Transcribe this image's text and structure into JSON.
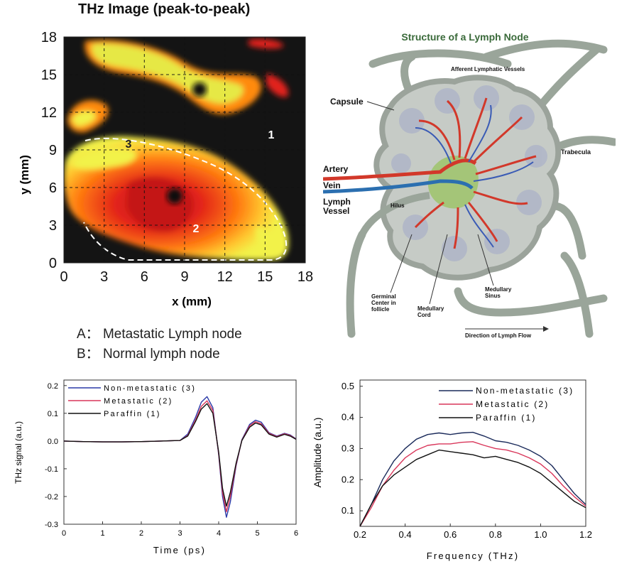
{
  "heatmap": {
    "title": "THz Image (peak-to-peak)",
    "xlabel": "x (mm)",
    "ylabel": "y (mm)",
    "xticks": [
      "0",
      "3",
      "6",
      "9",
      "12",
      "15",
      "18"
    ],
    "yticks": [
      "0",
      "3",
      "6",
      "9",
      "12",
      "15",
      "18"
    ],
    "region_labels": [
      "1",
      "2",
      "3"
    ],
    "colors": {
      "hot": "#f2f24a",
      "mid": "#ff9a10",
      "warm": "#e2231a",
      "cold": "#141414"
    }
  },
  "notes": {
    "a": "A： Metastatic Lymph node",
    "b": "B： Normal lymph node"
  },
  "diagram": {
    "title": "Structure of a Lymph Node",
    "labels": {
      "capsule": "Capsule",
      "afferent": "Afferent Lymphatic Vessels",
      "trabecula": "Trabecula",
      "artery": "Artery",
      "vein": "Vein",
      "lymph_vessel": "Lymph Vessel",
      "hilus": "Hilus",
      "germinal": "Germinal Center in follicle",
      "medullary_cord": "Medullary Cord",
      "medullary_sinus": "Medullary Sinus",
      "direction": "Direction of Lymph Flow"
    }
  },
  "chart_data": [
    {
      "type": "line",
      "xlabel": "Time (ps)",
      "ylabel": "THz signal (a.u.)",
      "xlim": [
        0,
        6
      ],
      "ylim": [
        -0.3,
        0.22
      ],
      "xticks": [
        "0",
        "1",
        "2",
        "3",
        "4",
        "5",
        "6"
      ],
      "yticks": [
        "0.2",
        "0.1",
        "0.0",
        "-0.1",
        "-0.2",
        "-0.3"
      ],
      "legend_position": "top-left",
      "series": [
        {
          "name": "Non-metastatic (3)",
          "color": "#2b3aa8",
          "x": [
            0,
            0.5,
            1.0,
            1.5,
            2.0,
            2.5,
            3.0,
            3.2,
            3.4,
            3.55,
            3.7,
            3.85,
            4.0,
            4.1,
            4.2,
            4.3,
            4.45,
            4.6,
            4.8,
            4.95,
            5.1,
            5.3,
            5.5,
            5.7,
            5.85,
            6.0
          ],
          "y": [
            0,
            -0.002,
            -0.003,
            -0.003,
            -0.002,
            0,
            0.002,
            0.025,
            0.085,
            0.14,
            0.16,
            0.12,
            -0.05,
            -0.2,
            -0.275,
            -0.22,
            -0.09,
            0.005,
            0.06,
            0.075,
            0.068,
            0.03,
            0.018,
            0.028,
            0.022,
            0.008
          ]
        },
        {
          "name": "Metastatic (2)",
          "color": "#d9365a",
          "x": [
            0,
            0.5,
            1.0,
            1.5,
            2.0,
            2.5,
            3.0,
            3.2,
            3.4,
            3.55,
            3.7,
            3.85,
            4.0,
            4.1,
            4.2,
            4.3,
            4.45,
            4.6,
            4.8,
            4.95,
            5.1,
            5.3,
            5.5,
            5.7,
            5.85,
            6.0
          ],
          "y": [
            0,
            -0.002,
            -0.003,
            -0.003,
            -0.002,
            0,
            0.002,
            0.02,
            0.075,
            0.125,
            0.145,
            0.11,
            -0.045,
            -0.185,
            -0.255,
            -0.2,
            -0.085,
            0.003,
            0.055,
            0.07,
            0.062,
            0.028,
            0.016,
            0.026,
            0.02,
            0.007
          ]
        },
        {
          "name": "Paraffin (1)",
          "color": "#111111",
          "x": [
            0,
            0.5,
            1.0,
            1.5,
            2.0,
            2.5,
            3.0,
            3.2,
            3.4,
            3.55,
            3.7,
            3.85,
            4.0,
            4.1,
            4.2,
            4.3,
            4.45,
            4.6,
            4.8,
            4.95,
            5.1,
            5.3,
            5.5,
            5.7,
            5.85,
            6.0
          ],
          "y": [
            0,
            -0.002,
            -0.003,
            -0.003,
            -0.002,
            0,
            0.002,
            0.018,
            0.07,
            0.115,
            0.135,
            0.1,
            -0.04,
            -0.17,
            -0.235,
            -0.185,
            -0.08,
            0.002,
            0.05,
            0.065,
            0.058,
            0.025,
            0.014,
            0.024,
            0.018,
            0.006
          ]
        }
      ]
    },
    {
      "type": "line",
      "xlabel": "Frequency (THz)",
      "ylabel": "Amplitude (a.u.)",
      "xlim": [
        0.2,
        1.2
      ],
      "ylim": [
        0.05,
        0.52
      ],
      "xticks": [
        "0.2",
        "0.4",
        "0.6",
        "0.8",
        "1.0",
        "1.2"
      ],
      "yticks": [
        "0.5",
        "0.4",
        "0.3",
        "0.2",
        "0.1"
      ],
      "legend_position": "top-right",
      "series": [
        {
          "name": "Non-metastatic (3)",
          "color": "#1a2a5a",
          "x": [
            0.2,
            0.25,
            0.3,
            0.35,
            0.4,
            0.45,
            0.5,
            0.55,
            0.6,
            0.65,
            0.7,
            0.75,
            0.8,
            0.85,
            0.9,
            0.95,
            1.0,
            1.05,
            1.1,
            1.15,
            1.2
          ],
          "y": [
            0.05,
            0.12,
            0.2,
            0.26,
            0.3,
            0.33,
            0.345,
            0.35,
            0.345,
            0.35,
            0.352,
            0.34,
            0.325,
            0.32,
            0.31,
            0.295,
            0.275,
            0.245,
            0.2,
            0.155,
            0.12
          ]
        },
        {
          "name": "Metastatic (2)",
          "color": "#d9365a",
          "x": [
            0.2,
            0.25,
            0.3,
            0.35,
            0.4,
            0.45,
            0.5,
            0.55,
            0.6,
            0.65,
            0.7,
            0.75,
            0.8,
            0.85,
            0.9,
            0.95,
            1.0,
            1.05,
            1.1,
            1.15,
            1.2
          ],
          "y": [
            0.05,
            0.11,
            0.18,
            0.23,
            0.27,
            0.295,
            0.31,
            0.315,
            0.315,
            0.32,
            0.322,
            0.31,
            0.3,
            0.295,
            0.285,
            0.27,
            0.25,
            0.22,
            0.18,
            0.145,
            0.115
          ]
        },
        {
          "name": "Paraffin (1)",
          "color": "#111111",
          "x": [
            0.2,
            0.25,
            0.3,
            0.35,
            0.4,
            0.45,
            0.5,
            0.55,
            0.6,
            0.65,
            0.7,
            0.75,
            0.8,
            0.85,
            0.9,
            0.95,
            1.0,
            1.05,
            1.1,
            1.15,
            1.2
          ],
          "y": [
            0.05,
            0.12,
            0.18,
            0.215,
            0.24,
            0.265,
            0.28,
            0.295,
            0.29,
            0.285,
            0.28,
            0.27,
            0.275,
            0.265,
            0.255,
            0.24,
            0.22,
            0.19,
            0.16,
            0.13,
            0.11
          ]
        }
      ]
    }
  ]
}
